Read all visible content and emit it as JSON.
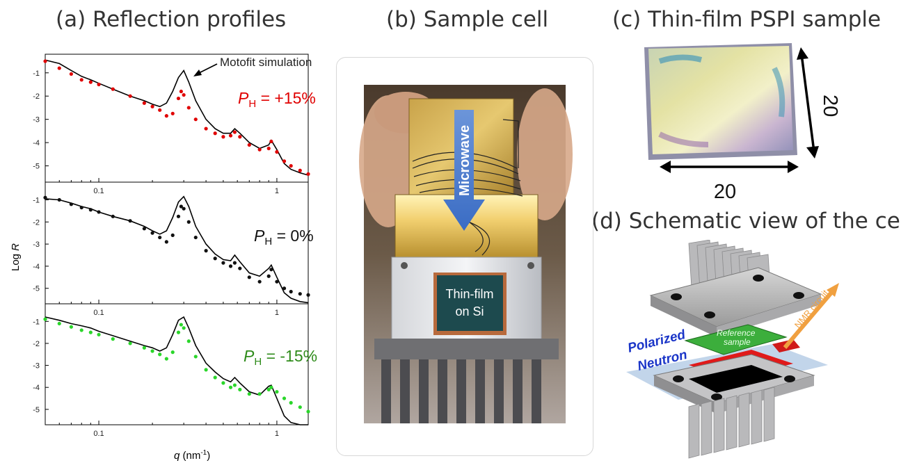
{
  "titles": {
    "a": "(a) Reflection profiles",
    "b": "(b) Sample cell",
    "c": "(c) Thin-film PSPI sample",
    "d": "(d) Schematic view of the cell"
  },
  "panel_a": {
    "annotation": "Motofit simulation",
    "ylabel_main": "Log ",
    "ylabel_italic": "R",
    "xlabel_italic": "q",
    "xlabel_rest": " (nm",
    "xlabel_sup": "-1",
    "xlabel_close": ")",
    "xticks": [
      "0.1",
      "1"
    ],
    "yticks": [
      "-1",
      "-2",
      "-3",
      "-4",
      "-5"
    ],
    "labels": [
      {
        "p": "P",
        "sub": "H",
        "rest": " = +15%",
        "color": "#e00000"
      },
      {
        "p": "P",
        "sub": "H",
        "rest": " = 0%",
        "color": "#111111"
      },
      {
        "p": "P",
        "sub": "H",
        "rest": " = -15%",
        "color": "#2e8b1a"
      }
    ]
  },
  "chart_data": {
    "type": "scatter",
    "xlabel": "q (nm-1)",
    "ylabel": "Log R",
    "xscale": "log",
    "xlim": [
      0.05,
      1.5
    ],
    "ylim": [
      -5.7,
      -0.2
    ],
    "panels": [
      {
        "label": "PH = +15%",
        "data_color": "#e00000",
        "data": [
          [
            0.05,
            -0.5
          ],
          [
            0.06,
            -0.8
          ],
          [
            0.07,
            -1.05
          ],
          [
            0.08,
            -1.3
          ],
          [
            0.09,
            -1.4
          ],
          [
            0.1,
            -1.5
          ],
          [
            0.12,
            -1.7
          ],
          [
            0.15,
            -2.0
          ],
          [
            0.18,
            -2.3
          ],
          [
            0.2,
            -2.45
          ],
          [
            0.22,
            -2.6
          ],
          [
            0.24,
            -2.85
          ],
          [
            0.26,
            -2.75
          ],
          [
            0.28,
            -2.1
          ],
          [
            0.29,
            -1.8
          ],
          [
            0.3,
            -1.95
          ],
          [
            0.32,
            -2.5
          ],
          [
            0.35,
            -3.0
          ],
          [
            0.4,
            -3.4
          ],
          [
            0.45,
            -3.6
          ],
          [
            0.5,
            -3.75
          ],
          [
            0.55,
            -3.7
          ],
          [
            0.58,
            -3.55
          ],
          [
            0.62,
            -3.75
          ],
          [
            0.7,
            -4.1
          ],
          [
            0.8,
            -4.3
          ],
          [
            0.9,
            -4.25
          ],
          [
            0.93,
            -3.95
          ],
          [
            1.0,
            -4.4
          ],
          [
            1.1,
            -4.8
          ],
          [
            1.2,
            -5.0
          ],
          [
            1.35,
            -5.2
          ],
          [
            1.5,
            -5.35
          ]
        ],
        "simulation": [
          [
            0.05,
            -0.45
          ],
          [
            0.06,
            -0.6
          ],
          [
            0.07,
            -0.9
          ],
          [
            0.08,
            -1.15
          ],
          [
            0.09,
            -1.3
          ],
          [
            0.1,
            -1.45
          ],
          [
            0.12,
            -1.7
          ],
          [
            0.15,
            -2.0
          ],
          [
            0.18,
            -2.2
          ],
          [
            0.2,
            -2.35
          ],
          [
            0.22,
            -2.45
          ],
          [
            0.24,
            -2.3
          ],
          [
            0.26,
            -1.8
          ],
          [
            0.28,
            -1.2
          ],
          [
            0.3,
            -0.9
          ],
          [
            0.32,
            -1.4
          ],
          [
            0.35,
            -2.2
          ],
          [
            0.4,
            -3.0
          ],
          [
            0.45,
            -3.4
          ],
          [
            0.5,
            -3.6
          ],
          [
            0.55,
            -3.6
          ],
          [
            0.58,
            -3.4
          ],
          [
            0.62,
            -3.6
          ],
          [
            0.7,
            -4.0
          ],
          [
            0.8,
            -4.25
          ],
          [
            0.9,
            -4.1
          ],
          [
            0.93,
            -3.9
          ],
          [
            1.0,
            -4.3
          ],
          [
            1.1,
            -4.9
          ],
          [
            1.2,
            -5.15
          ],
          [
            1.35,
            -5.3
          ],
          [
            1.5,
            -5.4
          ]
        ]
      },
      {
        "label": "PH = 0%",
        "data_color": "#111111",
        "data": [
          [
            0.05,
            -0.9
          ],
          [
            0.06,
            -1.0
          ],
          [
            0.07,
            -1.2
          ],
          [
            0.08,
            -1.35
          ],
          [
            0.09,
            -1.45
          ],
          [
            0.1,
            -1.55
          ],
          [
            0.12,
            -1.75
          ],
          [
            0.15,
            -1.95
          ],
          [
            0.18,
            -2.3
          ],
          [
            0.2,
            -2.5
          ],
          [
            0.22,
            -2.7
          ],
          [
            0.24,
            -2.9
          ],
          [
            0.26,
            -2.6
          ],
          [
            0.28,
            -1.75
          ],
          [
            0.29,
            -1.3
          ],
          [
            0.3,
            -1.4
          ],
          [
            0.32,
            -2.0
          ],
          [
            0.35,
            -2.7
          ],
          [
            0.4,
            -3.3
          ],
          [
            0.45,
            -3.65
          ],
          [
            0.5,
            -3.85
          ],
          [
            0.55,
            -4.0
          ],
          [
            0.58,
            -3.85
          ],
          [
            0.62,
            -4.1
          ],
          [
            0.7,
            -4.5
          ],
          [
            0.8,
            -4.7
          ],
          [
            0.9,
            -4.45
          ],
          [
            0.93,
            -4.15
          ],
          [
            1.0,
            -4.7
          ],
          [
            1.1,
            -5.0
          ],
          [
            1.2,
            -5.15
          ],
          [
            1.35,
            -5.25
          ],
          [
            1.5,
            -5.3
          ]
        ],
        "simulation": [
          [
            0.05,
            -0.95
          ],
          [
            0.06,
            -1.0
          ],
          [
            0.07,
            -1.15
          ],
          [
            0.08,
            -1.3
          ],
          [
            0.09,
            -1.4
          ],
          [
            0.1,
            -1.55
          ],
          [
            0.12,
            -1.75
          ],
          [
            0.15,
            -1.95
          ],
          [
            0.18,
            -2.2
          ],
          [
            0.2,
            -2.4
          ],
          [
            0.22,
            -2.55
          ],
          [
            0.24,
            -2.4
          ],
          [
            0.26,
            -1.8
          ],
          [
            0.28,
            -1.1
          ],
          [
            0.3,
            -0.85
          ],
          [
            0.32,
            -1.3
          ],
          [
            0.35,
            -2.2
          ],
          [
            0.4,
            -3.0
          ],
          [
            0.45,
            -3.45
          ],
          [
            0.5,
            -3.7
          ],
          [
            0.55,
            -3.75
          ],
          [
            0.58,
            -3.5
          ],
          [
            0.62,
            -3.8
          ],
          [
            0.7,
            -4.3
          ],
          [
            0.8,
            -4.45
          ],
          [
            0.9,
            -4.1
          ],
          [
            0.93,
            -3.95
          ],
          [
            1.0,
            -4.5
          ],
          [
            1.1,
            -5.2
          ],
          [
            1.2,
            -5.45
          ],
          [
            1.35,
            -5.6
          ],
          [
            1.5,
            -5.65
          ]
        ]
      },
      {
        "label": "PH = -15%",
        "data_color": "#2bd62b",
        "data": [
          [
            0.05,
            -0.9
          ],
          [
            0.06,
            -1.1
          ],
          [
            0.07,
            -1.25
          ],
          [
            0.08,
            -1.4
          ],
          [
            0.09,
            -1.5
          ],
          [
            0.1,
            -1.6
          ],
          [
            0.12,
            -1.8
          ],
          [
            0.15,
            -2.0
          ],
          [
            0.18,
            -2.2
          ],
          [
            0.2,
            -2.35
          ],
          [
            0.22,
            -2.5
          ],
          [
            0.24,
            -2.7
          ],
          [
            0.26,
            -2.4
          ],
          [
            0.28,
            -1.5
          ],
          [
            0.29,
            -1.15
          ],
          [
            0.3,
            -1.3
          ],
          [
            0.32,
            -1.9
          ],
          [
            0.35,
            -2.6
          ],
          [
            0.4,
            -3.2
          ],
          [
            0.45,
            -3.55
          ],
          [
            0.5,
            -3.8
          ],
          [
            0.55,
            -4.0
          ],
          [
            0.58,
            -3.9
          ],
          [
            0.62,
            -4.1
          ],
          [
            0.7,
            -4.3
          ],
          [
            0.8,
            -4.3
          ],
          [
            0.9,
            -4.1
          ],
          [
            0.93,
            -4.0
          ],
          [
            1.0,
            -4.2
          ],
          [
            1.1,
            -4.5
          ],
          [
            1.2,
            -4.7
          ],
          [
            1.35,
            -4.9
          ],
          [
            1.5,
            -5.1
          ]
        ],
        "simulation": [
          [
            0.05,
            -0.8
          ],
          [
            0.06,
            -0.95
          ],
          [
            0.07,
            -1.1
          ],
          [
            0.08,
            -1.2
          ],
          [
            0.09,
            -1.3
          ],
          [
            0.1,
            -1.45
          ],
          [
            0.12,
            -1.65
          ],
          [
            0.15,
            -1.9
          ],
          [
            0.18,
            -2.1
          ],
          [
            0.2,
            -2.2
          ],
          [
            0.22,
            -2.35
          ],
          [
            0.24,
            -2.2
          ],
          [
            0.26,
            -1.6
          ],
          [
            0.28,
            -0.95
          ],
          [
            0.3,
            -0.8
          ],
          [
            0.32,
            -1.3
          ],
          [
            0.35,
            -2.1
          ],
          [
            0.4,
            -2.9
          ],
          [
            0.45,
            -3.3
          ],
          [
            0.5,
            -3.6
          ],
          [
            0.55,
            -3.75
          ],
          [
            0.58,
            -3.55
          ],
          [
            0.62,
            -3.8
          ],
          [
            0.7,
            -4.2
          ],
          [
            0.8,
            -4.35
          ],
          [
            0.9,
            -3.95
          ],
          [
            0.93,
            -3.9
          ],
          [
            1.0,
            -4.5
          ],
          [
            1.1,
            -5.3
          ],
          [
            1.2,
            -5.6
          ],
          [
            1.35,
            -5.7
          ],
          [
            1.5,
            -5.7
          ]
        ]
      }
    ]
  },
  "panel_b": {
    "microwave": "Microwave",
    "sample_line1": "Thin-film",
    "sample_line2": "on Si"
  },
  "panel_c": {
    "dim_horizontal": "20",
    "dim_vertical": "20"
  },
  "panel_d": {
    "polarized": "Polarized",
    "neutron": "Neutron",
    "reference1": "Reference",
    "reference2": "sample",
    "nmr": "NMR circuit"
  },
  "colors": {
    "red": "#e00000",
    "green": "#2e8b1a",
    "blue_text": "#1a35c8",
    "orange": "#f0a040"
  }
}
